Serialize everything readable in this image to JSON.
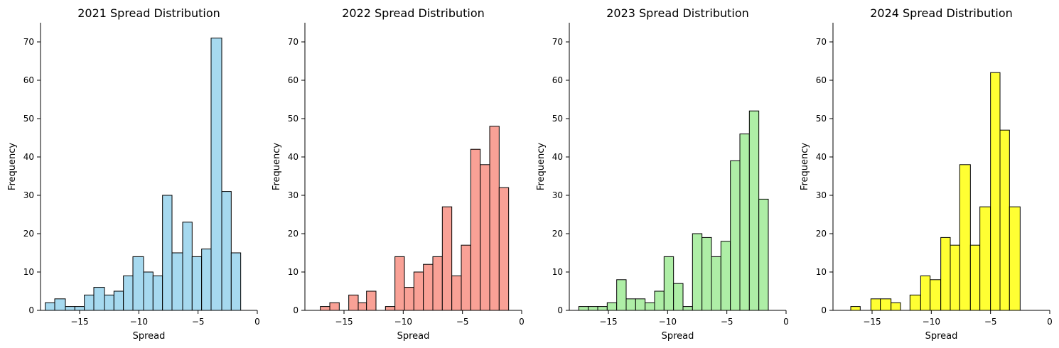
{
  "chart_data": [
    {
      "type": "bar",
      "title": "2021 Spread Distribution",
      "xlabel": "Spread",
      "ylabel": "Frequency",
      "color": "#a6d9ef",
      "xlim": [
        -18.3,
        0
      ],
      "ylim": [
        0,
        75
      ],
      "xticks": [
        -15,
        -10,
        -5,
        0
      ],
      "xtick_labels": [
        "−15",
        "−10",
        "−5",
        "0"
      ],
      "yticks": [
        0,
        10,
        20,
        30,
        40,
        50,
        60,
        70
      ],
      "bins": [
        {
          "x0": -17.9,
          "x1": -17.1,
          "value": 2
        },
        {
          "x0": -17.1,
          "x1": -16.2,
          "value": 3
        },
        {
          "x0": -16.2,
          "x1": -15.4,
          "value": 1
        },
        {
          "x0": -15.4,
          "x1": -14.6,
          "value": 1
        },
        {
          "x0": -14.6,
          "x1": -13.8,
          "value": 4
        },
        {
          "x0": -13.8,
          "x1": -12.9,
          "value": 6
        },
        {
          "x0": -12.9,
          "x1": -12.1,
          "value": 4
        },
        {
          "x0": -12.1,
          "x1": -11.3,
          "value": 5
        },
        {
          "x0": -11.3,
          "x1": -10.5,
          "value": 9
        },
        {
          "x0": -10.5,
          "x1": -9.6,
          "value": 14
        },
        {
          "x0": -9.6,
          "x1": -8.8,
          "value": 10
        },
        {
          "x0": -8.8,
          "x1": -8.0,
          "value": 9
        },
        {
          "x0": -8.0,
          "x1": -7.2,
          "value": 30
        },
        {
          "x0": -7.2,
          "x1": -6.3,
          "value": 15
        },
        {
          "x0": -6.3,
          "x1": -5.5,
          "value": 23
        },
        {
          "x0": -5.5,
          "x1": -4.7,
          "value": 14
        },
        {
          "x0": -4.7,
          "x1": -3.9,
          "value": 16
        },
        {
          "x0": -3.9,
          "x1": -3.0,
          "value": 71
        },
        {
          "x0": -3.0,
          "x1": -2.2,
          "value": 31
        },
        {
          "x0": -2.2,
          "x1": -1.4,
          "value": 15
        }
      ]
    },
    {
      "type": "bar",
      "title": "2022 Spread Distribution",
      "xlabel": "Spread",
      "ylabel": "Frequency",
      "color": "#f9a196",
      "xlim": [
        -18.3,
        0
      ],
      "ylim": [
        0,
        75
      ],
      "xticks": [
        -15,
        -10,
        -5,
        0
      ],
      "xtick_labels": [
        "−15",
        "−10",
        "−5",
        "0"
      ],
      "yticks": [
        0,
        10,
        20,
        30,
        40,
        50,
        60,
        70
      ],
      "bins": [
        {
          "x0": -17.0,
          "x1": -16.2,
          "value": 1
        },
        {
          "x0": -16.2,
          "x1": -15.4,
          "value": 2
        },
        {
          "x0": -15.4,
          "x1": -14.6,
          "value": 0
        },
        {
          "x0": -14.6,
          "x1": -13.8,
          "value": 4
        },
        {
          "x0": -13.8,
          "x1": -13.1,
          "value": 2
        },
        {
          "x0": -13.1,
          "x1": -12.3,
          "value": 5
        },
        {
          "x0": -12.3,
          "x1": -11.5,
          "value": 0
        },
        {
          "x0": -11.5,
          "x1": -10.7,
          "value": 1
        },
        {
          "x0": -10.7,
          "x1": -9.9,
          "value": 14
        },
        {
          "x0": -9.9,
          "x1": -9.1,
          "value": 6
        },
        {
          "x0": -9.1,
          "x1": -8.3,
          "value": 10
        },
        {
          "x0": -8.3,
          "x1": -7.5,
          "value": 12
        },
        {
          "x0": -7.5,
          "x1": -6.7,
          "value": 14
        },
        {
          "x0": -6.7,
          "x1": -5.9,
          "value": 27
        },
        {
          "x0": -5.9,
          "x1": -5.1,
          "value": 9
        },
        {
          "x0": -5.1,
          "x1": -4.3,
          "value": 17
        },
        {
          "x0": -4.3,
          "x1": -3.5,
          "value": 42
        },
        {
          "x0": -3.5,
          "x1": -2.7,
          "value": 38
        },
        {
          "x0": -2.7,
          "x1": -1.9,
          "value": 48
        },
        {
          "x0": -1.9,
          "x1": -1.1,
          "value": 32
        }
      ]
    },
    {
      "type": "bar",
      "title": "2023 Spread Distribution",
      "xlabel": "Spread",
      "ylabel": "Frequency",
      "color": "#aeeea6",
      "xlim": [
        -18.3,
        0
      ],
      "ylim": [
        0,
        75
      ],
      "xticks": [
        -15,
        -10,
        -5,
        0
      ],
      "xtick_labels": [
        "−15",
        "−10",
        "−5",
        "0"
      ],
      "yticks": [
        0,
        10,
        20,
        30,
        40,
        50,
        60,
        70
      ],
      "bins": [
        {
          "x0": -17.5,
          "x1": -16.7,
          "value": 1
        },
        {
          "x0": -16.7,
          "x1": -15.9,
          "value": 1
        },
        {
          "x0": -15.9,
          "x1": -15.1,
          "value": 1
        },
        {
          "x0": -15.1,
          "x1": -14.3,
          "value": 2
        },
        {
          "x0": -14.3,
          "x1": -13.5,
          "value": 8
        },
        {
          "x0": -13.5,
          "x1": -12.7,
          "value": 3
        },
        {
          "x0": -12.7,
          "x1": -11.9,
          "value": 3
        },
        {
          "x0": -11.9,
          "x1": -11.1,
          "value": 2
        },
        {
          "x0": -11.1,
          "x1": -10.3,
          "value": 5
        },
        {
          "x0": -10.3,
          "x1": -9.5,
          "value": 14
        },
        {
          "x0": -9.5,
          "x1": -8.7,
          "value": 7
        },
        {
          "x0": -8.7,
          "x1": -7.9,
          "value": 1
        },
        {
          "x0": -7.9,
          "x1": -7.1,
          "value": 20
        },
        {
          "x0": -7.1,
          "x1": -6.3,
          "value": 19
        },
        {
          "x0": -6.3,
          "x1": -5.5,
          "value": 14
        },
        {
          "x0": -5.5,
          "x1": -4.7,
          "value": 18
        },
        {
          "x0": -4.7,
          "x1": -3.9,
          "value": 39
        },
        {
          "x0": -3.9,
          "x1": -3.1,
          "value": 46
        },
        {
          "x0": -3.1,
          "x1": -2.3,
          "value": 52
        },
        {
          "x0": -2.3,
          "x1": -1.5,
          "value": 29
        }
      ]
    },
    {
      "type": "bar",
      "title": "2024 Spread Distribution",
      "xlabel": "Spread",
      "ylabel": "Frequency",
      "color": "#ffff33",
      "xlim": [
        -18.3,
        0
      ],
      "ylim": [
        0,
        75
      ],
      "xticks": [
        -15,
        -10,
        -5,
        0
      ],
      "xtick_labels": [
        "−15",
        "−10",
        "−5",
        "0"
      ],
      "yticks": [
        0,
        10,
        20,
        30,
        40,
        50,
        60,
        70
      ],
      "bins": [
        {
          "x0": -16.8,
          "x1": -16.0,
          "value": 1
        },
        {
          "x0": -16.0,
          "x1": -15.1,
          "value": 0
        },
        {
          "x0": -15.1,
          "x1": -14.3,
          "value": 3
        },
        {
          "x0": -14.3,
          "x1": -13.4,
          "value": 3
        },
        {
          "x0": -13.4,
          "x1": -12.6,
          "value": 2
        },
        {
          "x0": -12.6,
          "x1": -11.8,
          "value": 0
        },
        {
          "x0": -11.8,
          "x1": -10.9,
          "value": 4
        },
        {
          "x0": -10.9,
          "x1": -10.1,
          "value": 9
        },
        {
          "x0": -10.1,
          "x1": -9.2,
          "value": 8
        },
        {
          "x0": -9.2,
          "x1": -8.4,
          "value": 19
        },
        {
          "x0": -8.4,
          "x1": -7.6,
          "value": 17
        },
        {
          "x0": -7.6,
          "x1": -6.7,
          "value": 38
        },
        {
          "x0": -6.7,
          "x1": -5.9,
          "value": 17
        },
        {
          "x0": -5.9,
          "x1": -5.0,
          "value": 27
        },
        {
          "x0": -5.0,
          "x1": -4.2,
          "value": 62
        },
        {
          "x0": -4.2,
          "x1": -3.4,
          "value": 47
        },
        {
          "x0": -3.4,
          "x1": -2.5,
          "value": 27
        }
      ]
    }
  ]
}
